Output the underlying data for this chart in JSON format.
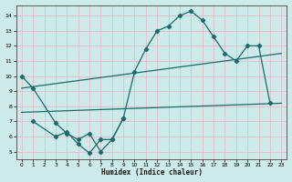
{
  "xlabel": "Humidex (Indice chaleur)",
  "background_color": "#cceaea",
  "grid_color": "#b8d8d8",
  "line_color": "#1a6b6b",
  "xlim": [
    -0.5,
    23.5
  ],
  "ylim": [
    4.5,
    14.7
  ],
  "yticks": [
    5,
    6,
    7,
    8,
    9,
    10,
    11,
    12,
    13,
    14
  ],
  "xticks": [
    0,
    1,
    2,
    3,
    4,
    5,
    6,
    7,
    8,
    9,
    10,
    11,
    12,
    13,
    14,
    15,
    16,
    17,
    18,
    19,
    20,
    21,
    22,
    23
  ],
  "curve1_x": [
    0,
    1,
    3,
    4,
    5,
    6,
    7,
    8,
    9,
    10,
    11,
    12,
    13,
    14,
    15,
    16,
    17,
    18,
    19,
    20,
    21,
    22
  ],
  "curve1_y": [
    10.0,
    9.2,
    6.9,
    6.2,
    5.8,
    6.2,
    5.0,
    5.8,
    7.2,
    10.3,
    11.8,
    13.0,
    13.3,
    14.0,
    14.3,
    13.7,
    12.6,
    11.5,
    11.0,
    12.0,
    12.0,
    8.2
  ],
  "curve2_x": [
    1,
    3,
    4,
    5,
    6,
    7,
    8,
    9
  ],
  "curve2_y": [
    7.0,
    6.0,
    6.3,
    5.5,
    4.9,
    5.8,
    5.8,
    7.2
  ],
  "line1_x": [
    0,
    23
  ],
  "line1_y": [
    9.2,
    11.5
  ],
  "line2_x": [
    0,
    23
  ],
  "line2_y": [
    7.6,
    8.2
  ]
}
